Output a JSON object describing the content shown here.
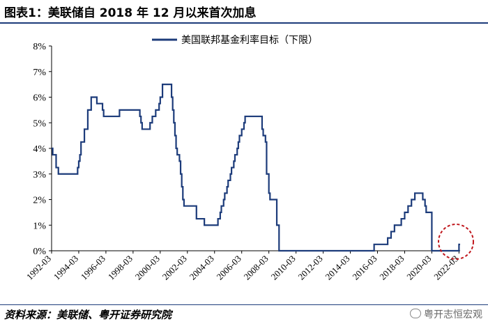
{
  "title": "图表1：美联储自 2018 年 12 月以来首次加息",
  "source": "资料来源：美联储、粤开证券研究院",
  "watermark": "粤开志恒宏观",
  "chart_data": {
    "type": "line",
    "legend": "美国联邦基金利率目标（下限）",
    "legend_position": "top-right",
    "x_ticks": [
      "1992-03",
      "1994-03",
      "1996-03",
      "1998-03",
      "2000-03",
      "2002-03",
      "2004-03",
      "2006-03",
      "2008-03",
      "2010-03",
      "2012-03",
      "2014-03",
      "2016-03",
      "2018-03",
      "2020-03",
      "2022-03"
    ],
    "y_ticks": [
      "0%",
      "1%",
      "2%",
      "3%",
      "4%",
      "5%",
      "6%",
      "7%",
      "8%"
    ],
    "ylim": [
      0,
      8
    ],
    "xlim": [
      "1992-03",
      "2022-04"
    ],
    "grid": false,
    "series": [
      {
        "name": "美国联邦基金利率目标（下限）",
        "color": "#1c3b7a",
        "points": [
          [
            "1992-03",
            4.0
          ],
          [
            "1992-04",
            3.75
          ],
          [
            "1992-07",
            3.25
          ],
          [
            "1992-09",
            3.0
          ],
          [
            "1994-02",
            3.25
          ],
          [
            "1994-03",
            3.5
          ],
          [
            "1994-04",
            3.75
          ],
          [
            "1994-05",
            4.25
          ],
          [
            "1994-08",
            4.75
          ],
          [
            "1994-11",
            5.5
          ],
          [
            "1995-02",
            6.0
          ],
          [
            "1995-07",
            5.75
          ],
          [
            "1995-12",
            5.5
          ],
          [
            "1996-01",
            5.25
          ],
          [
            "1997-03",
            5.5
          ],
          [
            "1998-09",
            5.25
          ],
          [
            "1998-10",
            5.0
          ],
          [
            "1998-11",
            4.75
          ],
          [
            "1999-06",
            5.0
          ],
          [
            "1999-08",
            5.25
          ],
          [
            "1999-11",
            5.5
          ],
          [
            "2000-02",
            5.75
          ],
          [
            "2000-03",
            6.0
          ],
          [
            "2000-05",
            6.5
          ],
          [
            "2001-01",
            6.0
          ],
          [
            "2001-02",
            5.5
          ],
          [
            "2001-03",
            5.0
          ],
          [
            "2001-04",
            4.5
          ],
          [
            "2001-05",
            4.0
          ],
          [
            "2001-06",
            3.75
          ],
          [
            "2001-08",
            3.5
          ],
          [
            "2001-09",
            3.0
          ],
          [
            "2001-10",
            2.5
          ],
          [
            "2001-11",
            2.0
          ],
          [
            "2001-12",
            1.75
          ],
          [
            "2002-11",
            1.25
          ],
          [
            "2003-06",
            1.0
          ],
          [
            "2004-06",
            1.25
          ],
          [
            "2004-08",
            1.5
          ],
          [
            "2004-09",
            1.75
          ],
          [
            "2004-11",
            2.0
          ],
          [
            "2004-12",
            2.25
          ],
          [
            "2005-02",
            2.5
          ],
          [
            "2005-03",
            2.75
          ],
          [
            "2005-05",
            3.0
          ],
          [
            "2005-06",
            3.25
          ],
          [
            "2005-08",
            3.5
          ],
          [
            "2005-09",
            3.75
          ],
          [
            "2005-11",
            4.0
          ],
          [
            "2005-12",
            4.25
          ],
          [
            "2006-01",
            4.5
          ],
          [
            "2006-03",
            4.75
          ],
          [
            "2006-05",
            5.0
          ],
          [
            "2006-06",
            5.25
          ],
          [
            "2007-09",
            4.75
          ],
          [
            "2007-10",
            4.5
          ],
          [
            "2007-12",
            4.25
          ],
          [
            "2008-01",
            3.0
          ],
          [
            "2008-03",
            2.25
          ],
          [
            "2008-04",
            2.0
          ],
          [
            "2008-10",
            1.0
          ],
          [
            "2008-12",
            0.0
          ],
          [
            "2015-12",
            0.25
          ],
          [
            "2016-12",
            0.5
          ],
          [
            "2017-03",
            0.75
          ],
          [
            "2017-06",
            1.0
          ],
          [
            "2017-12",
            1.25
          ],
          [
            "2018-03",
            1.5
          ],
          [
            "2018-06",
            1.75
          ],
          [
            "2018-09",
            2.0
          ],
          [
            "2018-12",
            2.25
          ],
          [
            "2019-07",
            2.0
          ],
          [
            "2019-09",
            1.75
          ],
          [
            "2019-10",
            1.5
          ],
          [
            "2020-03",
            0.0
          ],
          [
            "2022-03",
            0.25
          ]
        ]
      }
    ]
  }
}
